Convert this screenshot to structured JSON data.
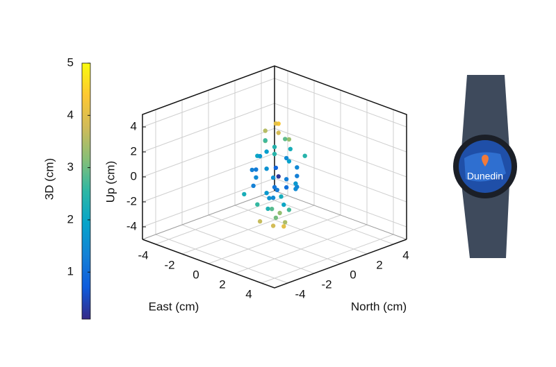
{
  "chart_data": {
    "type": "scatter3d",
    "xlabel": "East (cm)",
    "ylabel": "North (cm)",
    "zlabel": "Up (cm)",
    "xlim": [
      -5,
      5
    ],
    "ylim": [
      -5,
      5
    ],
    "zlim": [
      -5,
      5
    ],
    "xticks": [
      -4,
      -2,
      0,
      2,
      4
    ],
    "yticks": [
      -4,
      -2,
      0,
      2,
      4
    ],
    "zticks": [
      -4,
      -2,
      0,
      2,
      4
    ],
    "grid": true,
    "colorbar": {
      "label": "3D (cm)",
      "clim": [
        0.1,
        5
      ],
      "ticks": [
        1,
        2,
        3,
        4,
        5
      ],
      "colormap": [
        "#352a87",
        "#0f5cdd",
        "#1481d6",
        "#06a4ca",
        "#2eb7a4",
        "#87bf77",
        "#d1bb59",
        "#fec832",
        "#f9fb0e"
      ]
    },
    "x": [
      0.2,
      -0.3,
      0.5,
      -0.6,
      0.8,
      -0.2,
      0.1,
      -0.9,
      0.6,
      0.3,
      -0.5,
      1.0,
      -1.1,
      0.4,
      -0.2,
      0.9,
      -0.8,
      1.2,
      -1.2,
      0.1,
      0.5,
      -0.4,
      1.1,
      -1.0,
      0.7,
      -0.1,
      0.3,
      -0.7,
      0.9,
      -0.3,
      0.2,
      -0.9,
      0.6,
      -0.4,
      0.4,
      -0.2,
      0.7,
      -0.6,
      0.1,
      0.3,
      -1.4,
      1.4,
      0.0,
      0.2,
      -1.3,
      1.3,
      0.0,
      0.5,
      -0.5,
      0.8
    ],
    "y": [
      0.1,
      0.4,
      -0.2,
      -0.1,
      0.3,
      -0.5,
      0.7,
      0.2,
      -0.6,
      0.9,
      -0.8,
      0.1,
      0.5,
      -1.0,
      1.1,
      0.8,
      -0.9,
      -0.3,
      -0.2,
      0.2,
      1.2,
      -1.2,
      0.6,
      0.9,
      -1.1,
      0.3,
      -0.4,
      0.1,
      -0.2,
      0.8,
      -0.7,
      -0.4,
      0.5,
      0.2,
      -0.3,
      0.6,
      0.1,
      -0.5,
      -0.2,
      0.4,
      0.3,
      0.2,
      -1.4,
      1.4,
      -1.0,
      1.0,
      0.0,
      0.4,
      0.6,
      -0.8
    ],
    "z": [
      4.3,
      4.0,
      3.8,
      3.5,
      3.2,
      3.0,
      2.8,
      2.5,
      2.3,
      2.0,
      1.8,
      1.6,
      1.4,
      1.2,
      1.0,
      0.8,
      0.6,
      0.4,
      0.2,
      0.0,
      -0.2,
      -0.4,
      -0.6,
      -0.8,
      -1.0,
      -1.2,
      -1.4,
      -1.6,
      -1.8,
      -2.0,
      -2.2,
      -2.4,
      -2.6,
      -2.8,
      -3.0,
      -3.2,
      -3.4,
      -3.6,
      -3.8,
      -4.0,
      1.0,
      -0.5,
      0.5,
      -1.0,
      -1.5,
      1.8,
      2.4,
      -0.8,
      0.3,
      -0.2
    ]
  },
  "watch": {
    "label": "Dunedin"
  }
}
